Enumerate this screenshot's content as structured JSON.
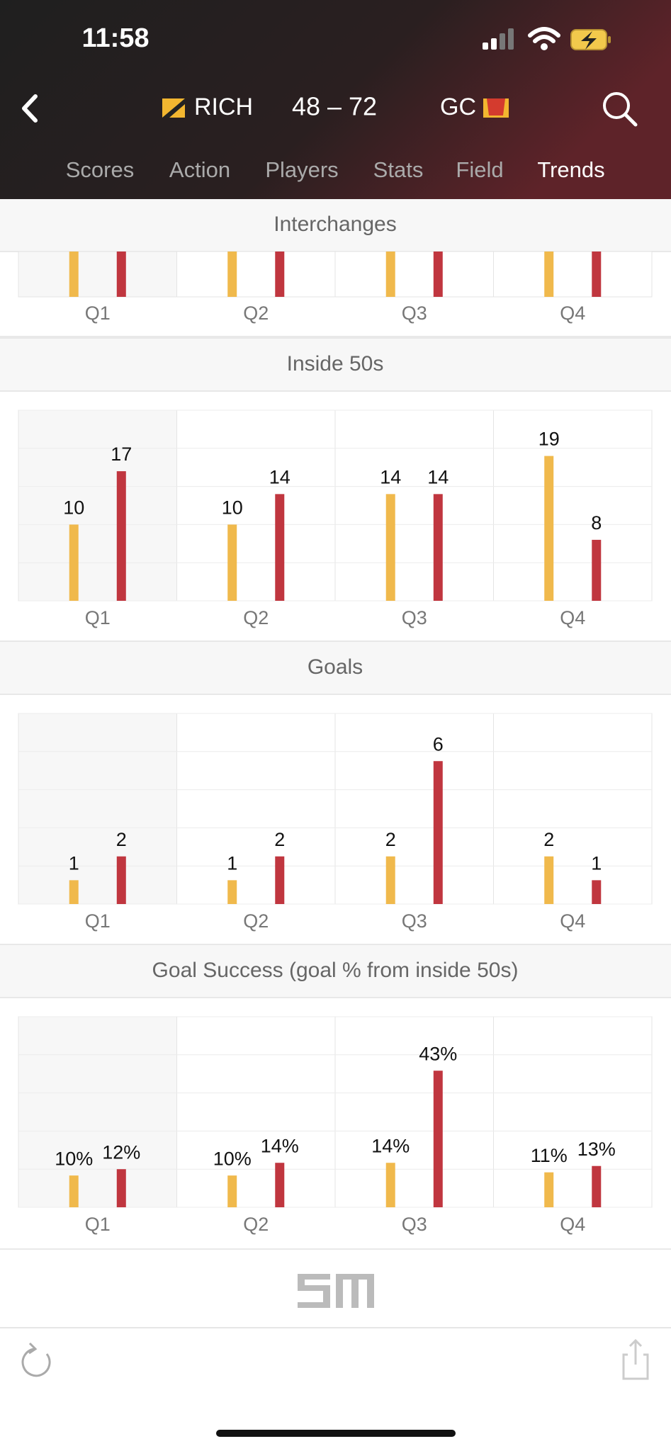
{
  "status": {
    "time": "11:58"
  },
  "header": {
    "home": "RICH",
    "score": "48 – 72",
    "away": "GC"
  },
  "tabs": [
    "Scores",
    "Action",
    "Players",
    "Stats",
    "Field",
    "Trends"
  ],
  "partial_chart": {
    "title": "Interchanges",
    "categories": [
      "Q1",
      "Q2",
      "Q3",
      "Q4"
    ]
  },
  "chart_data": [
    {
      "type": "bar",
      "title": "Inside 50s",
      "categories": [
        "Q1",
        "Q2",
        "Q3",
        "Q4"
      ],
      "series": [
        {
          "color": "#f0b94c",
          "values": [
            10,
            10,
            14,
            19
          ]
        },
        {
          "color": "#c0363f",
          "values": [
            17,
            14,
            14,
            8
          ]
        }
      ],
      "ylim": [
        0,
        25
      ],
      "yticks": [
        0,
        5,
        10,
        15,
        20,
        25
      ],
      "grid": true
    },
    {
      "type": "bar",
      "title": "Goals",
      "categories": [
        "Q1",
        "Q2",
        "Q3",
        "Q4"
      ],
      "series": [
        {
          "color": "#f0b94c",
          "values": [
            1,
            1,
            2,
            2
          ]
        },
        {
          "color": "#c0363f",
          "values": [
            2,
            2,
            6,
            1
          ]
        }
      ],
      "ylim": [
        0,
        8
      ],
      "yticks": [
        0,
        1.6,
        3.2,
        4.8,
        6.4,
        8
      ],
      "grid": true
    },
    {
      "type": "bar",
      "title": "Goal Success (goal % from inside 50s)",
      "categories": [
        "Q1",
        "Q2",
        "Q3",
        "Q4"
      ],
      "series": [
        {
          "color": "#f0b94c",
          "values": [
            10,
            10,
            14,
            11
          ],
          "value_labels": [
            "10%",
            "10%",
            "14%",
            "11%"
          ]
        },
        {
          "color": "#c0363f",
          "values": [
            12,
            14,
            43,
            13
          ],
          "value_labels": [
            "12%",
            "14%",
            "43%",
            "13%"
          ]
        }
      ],
      "ylim": [
        0,
        60
      ],
      "yticks": [
        0,
        12,
        24,
        36,
        48,
        60
      ],
      "grid": true
    }
  ]
}
